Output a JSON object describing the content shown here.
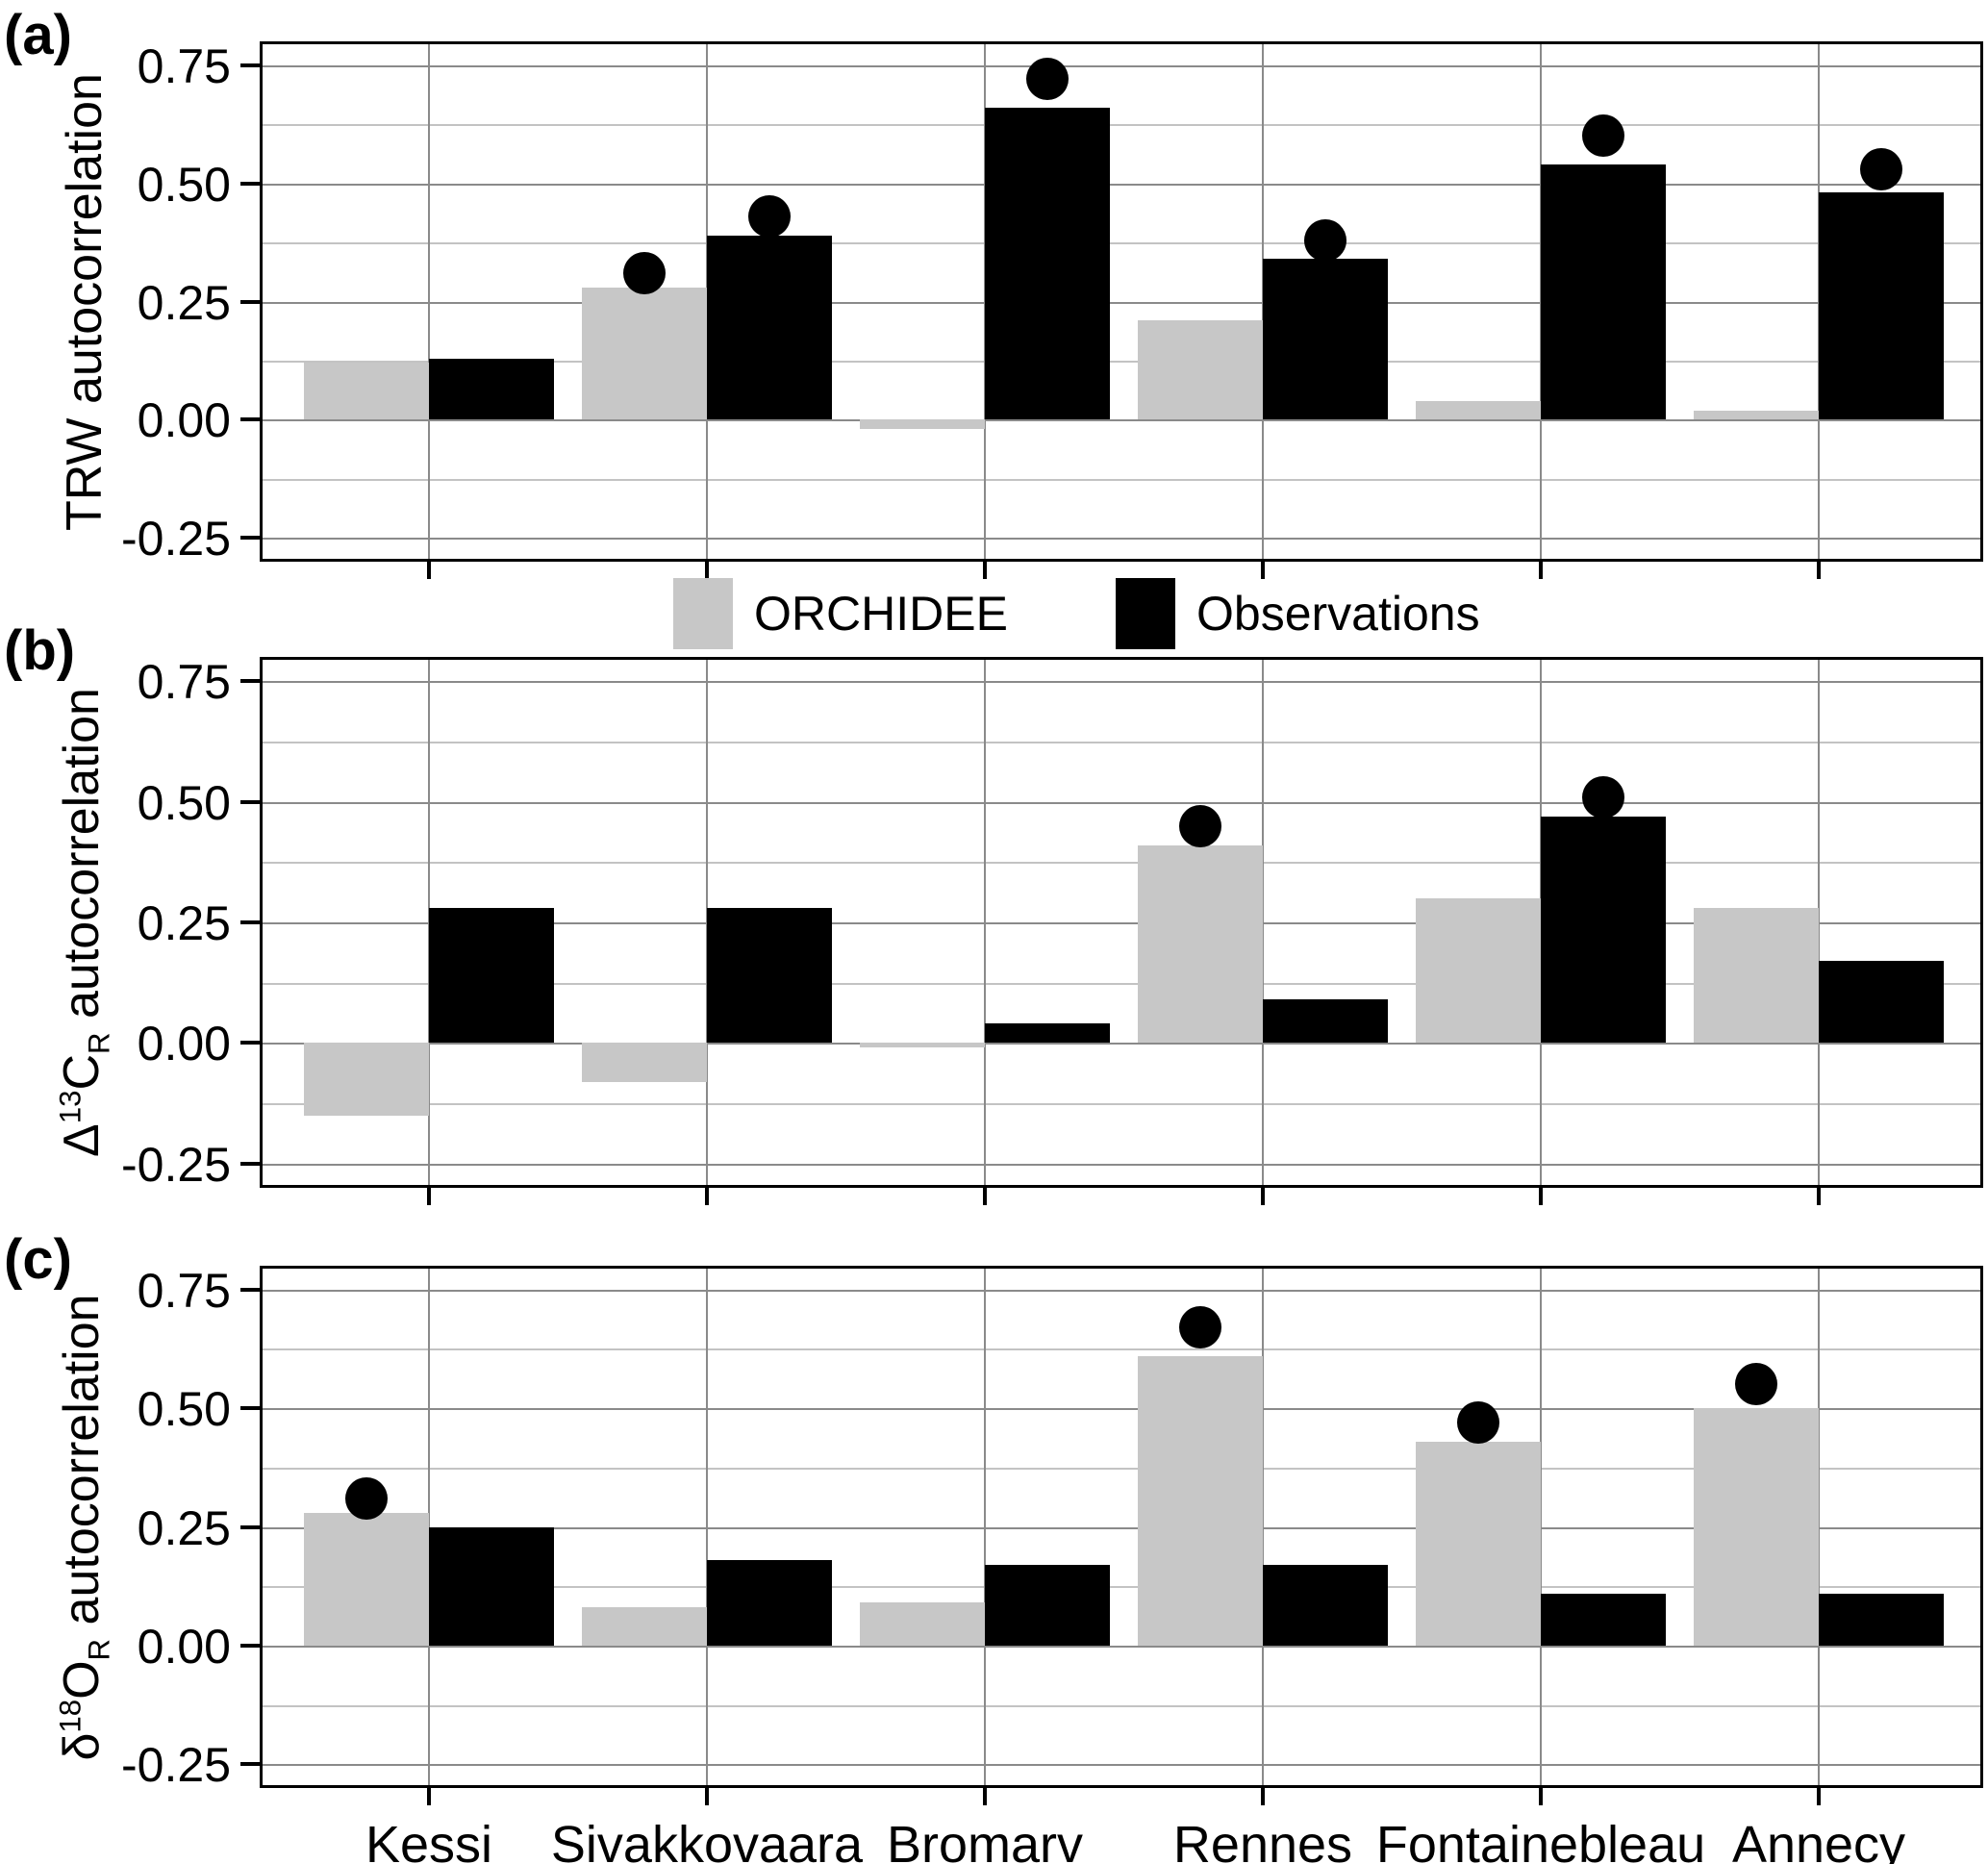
{
  "figure": {
    "panel_letters": [
      "(a)",
      "(b)",
      "(c)"
    ],
    "legend": [
      {
        "label": "ORCHIDEE",
        "color": "#c7c7c7"
      },
      {
        "label": "Observations",
        "color": "#000000"
      }
    ],
    "y_tick_labels": [
      "0.75",
      "0.50",
      "0.25",
      "0.00",
      "-0.25"
    ],
    "x_axis": {
      "sites": [
        "Kessi",
        "Sivakkovaara",
        "Bromarv",
        "Rennes",
        "Fontainebleau",
        "Annecy"
      ]
    },
    "colors": {
      "orchidee_bar": "#c7c7c7",
      "observations_bar": "#000000",
      "major_grid": "#8a8a8a",
      "minor_grid": "#c3c3c3",
      "panel_border": "#000000"
    }
  },
  "chart_data": [
    {
      "type": "bar",
      "panel": "a",
      "ylabel": "TRW autocorrelation",
      "ylabel_parts": [
        [
          "TRW autocorrelation",
          "n"
        ]
      ],
      "categories": [
        "Kessi",
        "Sivakkovaara",
        "Bromarv",
        "Rennes",
        "Fontainebleau",
        "Annecy"
      ],
      "series": [
        {
          "name": "ORCHIDEE",
          "values": [
            0.12,
            0.28,
            -0.02,
            0.21,
            0.04,
            0.02
          ],
          "sig_dots": [
            null,
            0.31,
            null,
            null,
            null,
            null
          ]
        },
        {
          "name": "Observations",
          "values": [
            0.13,
            0.39,
            0.66,
            0.34,
            0.54,
            0.48
          ],
          "sig_dots": [
            null,
            0.43,
            0.72,
            0.38,
            0.6,
            0.53
          ]
        }
      ],
      "ylim": [
        -0.3,
        0.8
      ],
      "yticks": [
        0.75,
        0.5,
        0.25,
        0.0,
        -0.25
      ],
      "grid": "horizontal major every 0.25, minor every 0.125, vertical at each category",
      "legend_position": "below panel (a), centered"
    },
    {
      "type": "bar",
      "panel": "b",
      "ylabel": "Δ¹³C_R autocorrelation",
      "ylabel_parts": [
        [
          "Δ",
          "n"
        ],
        [
          "13",
          "sup"
        ],
        [
          "C",
          "n"
        ],
        [
          "R",
          "sub"
        ],
        [
          " autocorrelation",
          "n"
        ]
      ],
      "categories": [
        "Kessi",
        "Sivakkovaara",
        "Bromarv",
        "Rennes",
        "Fontainebleau",
        "Annecy"
      ],
      "series": [
        {
          "name": "ORCHIDEE",
          "values": [
            -0.15,
            -0.08,
            -0.01,
            0.41,
            0.3,
            0.28
          ],
          "sig_dots": [
            null,
            null,
            null,
            0.45,
            null,
            null
          ]
        },
        {
          "name": "Observations",
          "values": [
            0.28,
            0.28,
            0.04,
            0.09,
            0.47,
            0.17
          ],
          "sig_dots": [
            null,
            null,
            null,
            null,
            0.51,
            null
          ]
        }
      ],
      "ylim": [
        -0.3,
        0.8
      ],
      "yticks": [
        0.75,
        0.5,
        0.25,
        0.0,
        -0.25
      ],
      "grid": "horizontal major every 0.25, minor every 0.125, vertical at each category",
      "legend_position": "none"
    },
    {
      "type": "bar",
      "panel": "c",
      "ylabel": "δ¹⁸O_R autocorrelation",
      "ylabel_parts": [
        [
          "δ",
          "n"
        ],
        [
          "18",
          "sup"
        ],
        [
          "O",
          "n"
        ],
        [
          "R",
          "sub"
        ],
        [
          " autocorrelation",
          "n"
        ]
      ],
      "categories": [
        "Kessi",
        "Sivakkovaara",
        "Bromarv",
        "Rennes",
        "Fontainebleau",
        "Annecy"
      ],
      "series": [
        {
          "name": "ORCHIDEE",
          "values": [
            0.28,
            0.08,
            0.09,
            0.61,
            0.43,
            0.5
          ],
          "sig_dots": [
            0.31,
            null,
            null,
            0.67,
            0.47,
            0.55
          ]
        },
        {
          "name": "Observations",
          "values": [
            0.25,
            0.18,
            0.17,
            0.17,
            0.11,
            0.11
          ],
          "sig_dots": [
            null,
            null,
            null,
            null,
            null,
            null
          ]
        }
      ],
      "ylim": [
        -0.3,
        0.8
      ],
      "yticks": [
        0.75,
        0.5,
        0.25,
        0.0,
        -0.25
      ],
      "grid": "horizontal major every 0.25, minor every 0.125, vertical at each category",
      "legend_position": "none",
      "show_x_labels": true
    }
  ]
}
